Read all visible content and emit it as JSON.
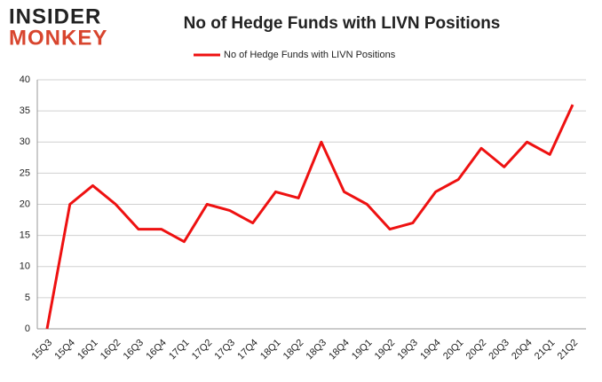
{
  "logo": {
    "line1": "INSIDER",
    "line2": "MONKEY"
  },
  "chart_data": {
    "type": "line",
    "title": "No of Hedge Funds with LIVN Positions",
    "categories": [
      "15Q3",
      "15Q4",
      "16Q1",
      "16Q2",
      "16Q3",
      "16Q4",
      "17Q1",
      "17Q2",
      "17Q3",
      "17Q4",
      "18Q1",
      "18Q2",
      "18Q3",
      "18Q4",
      "19Q1",
      "19Q2",
      "19Q3",
      "19Q4",
      "20Q1",
      "20Q2",
      "20Q3",
      "20Q4",
      "21Q1",
      "21Q2"
    ],
    "series": [
      {
        "name": "No of Hedge Funds with LIVN Positions",
        "color": "#ee1111",
        "values": [
          0,
          20,
          23,
          20,
          16,
          16,
          14,
          20,
          19,
          17,
          22,
          21,
          30,
          22,
          20,
          16,
          17,
          22,
          24,
          29,
          26,
          30,
          28,
          36
        ]
      }
    ],
    "ylim": [
      0,
      40
    ],
    "yticks": [
      0,
      5,
      10,
      15,
      20,
      25,
      30,
      35,
      40
    ],
    "grid": true,
    "legend": "top"
  }
}
